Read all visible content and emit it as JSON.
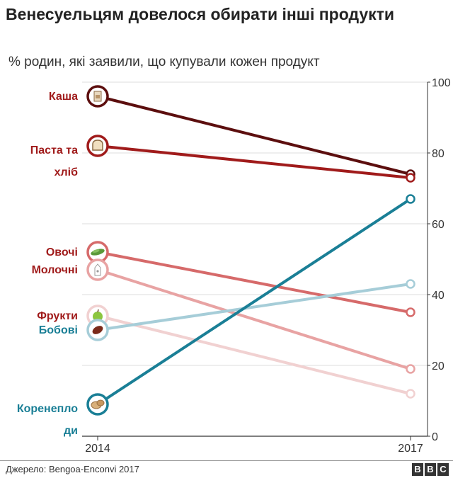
{
  "title": "Венесуельцям довелося обирати інші продукти",
  "subtitle": "% родин, які заявили, що купували кожен продукт",
  "source": "Джерело: Bengoa-Enconvi 2017",
  "logo": [
    "B",
    "B",
    "C"
  ],
  "chart_data": {
    "type": "line",
    "x": [
      "2014",
      "2017"
    ],
    "y_ticks": [
      "0",
      "20",
      "40",
      "60",
      "80",
      "100"
    ],
    "ylim": [
      0,
      100
    ],
    "grid": true,
    "series": [
      {
        "name": "Каша",
        "label_lines": [
          "Каша"
        ],
        "values": [
          96,
          74
        ],
        "color": "#5c0e0e",
        "label_color": "#a01b1b",
        "icon": "flour-bag-icon"
      },
      {
        "name": "Паста та хліб",
        "label_lines": [
          "Паста та",
          "хліб"
        ],
        "values": [
          82,
          73
        ],
        "color": "#a01b1b",
        "label_color": "#a01b1b",
        "icon": "bread-icon"
      },
      {
        "name": "Овочі",
        "label_lines": [
          "Овочі"
        ],
        "values": [
          52,
          35
        ],
        "color": "#d66a6a",
        "label_color": "#a01b1b",
        "icon": "vegetable-icon"
      },
      {
        "name": "Молочні",
        "label_lines": [
          "Молочні"
        ],
        "values": [
          47,
          19
        ],
        "color": "#e8a3a3",
        "label_color": "#a01b1b",
        "icon": "milk-carton-icon"
      },
      {
        "name": "Фрукти",
        "label_lines": [
          "Фрукти"
        ],
        "values": [
          34,
          12
        ],
        "color": "#f1d1d1",
        "label_color": "#a01b1b",
        "icon": "apple-icon"
      },
      {
        "name": "Бобові",
        "label_lines": [
          "Бобові"
        ],
        "values": [
          30,
          43
        ],
        "color": "#a6cdd8",
        "label_color": "#1a7f96",
        "icon": "bean-icon"
      },
      {
        "name": "Коренеплоди",
        "label_lines": [
          "Коренепло",
          "ди"
        ],
        "values": [
          9,
          67
        ],
        "color": "#1a7f96",
        "label_color": "#1a7f96",
        "icon": "potato-icon"
      }
    ]
  }
}
